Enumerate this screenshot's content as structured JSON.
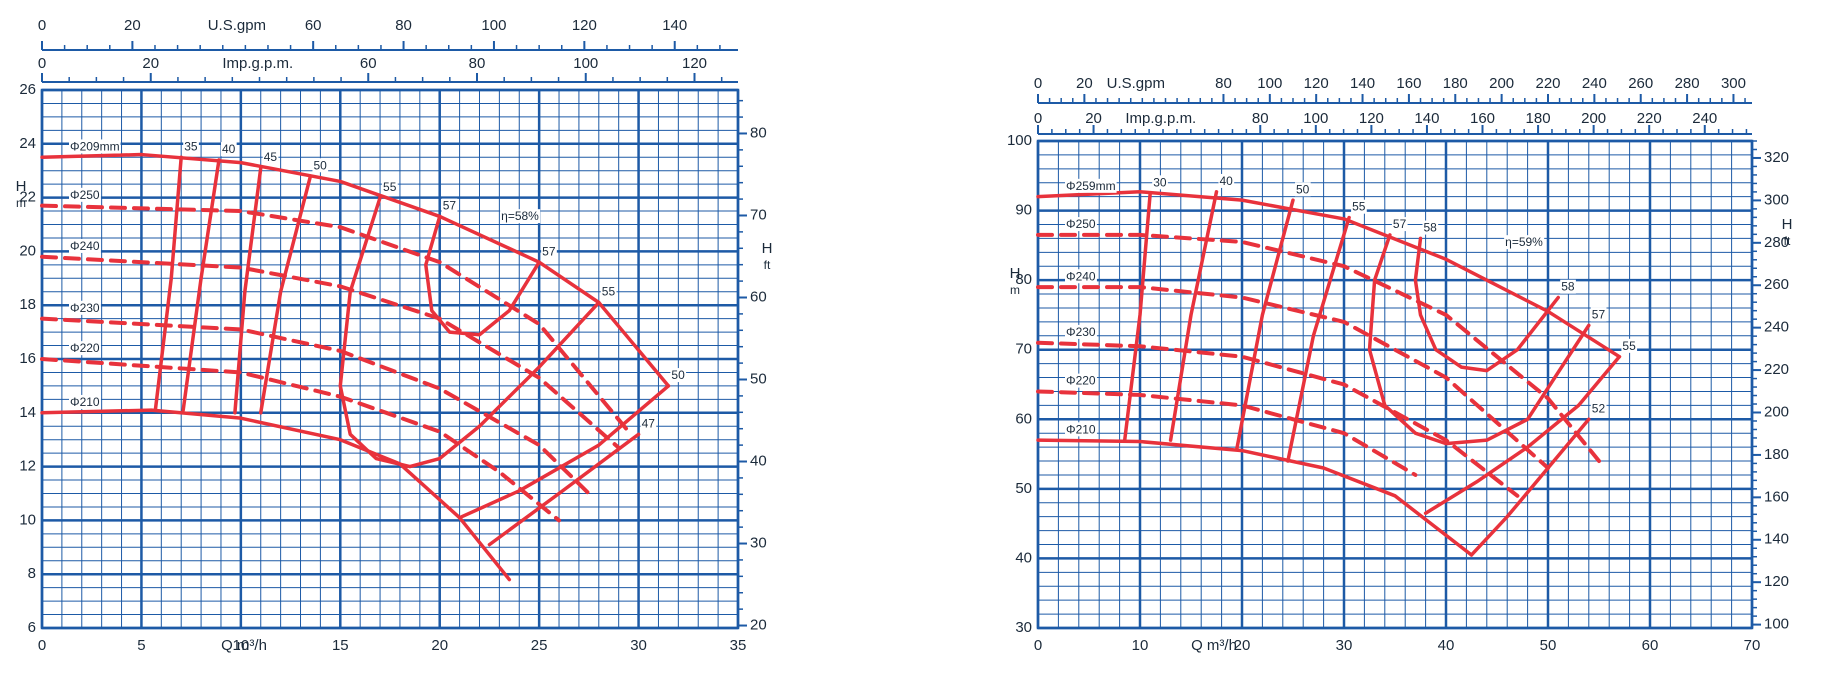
{
  "chart_data": [
    {
      "type": "line",
      "x_label": "Q m³/h",
      "y_label": "H",
      "y_unit": "m",
      "y2_label": "H",
      "y2_unit": "ft",
      "xlim": [
        0,
        35
      ],
      "xticks": [
        0,
        5,
        10,
        15,
        20,
        25,
        30,
        35
      ],
      "ylim": [
        6,
        26
      ],
      "yticks": [
        6,
        8,
        10,
        12,
        14,
        16,
        18,
        20,
        22,
        24,
        26
      ],
      "y2lim": [
        19.7,
        85.3
      ],
      "y2ticks": [
        20,
        30,
        40,
        50,
        60,
        70,
        80
      ],
      "top_axes": [
        {
          "label": "U.S.gpm",
          "lim": [
            0,
            154
          ],
          "ticks": [
            0,
            20,
            60,
            80,
            100,
            120,
            140
          ]
        },
        {
          "label": "Imp.g.p.m.",
          "lim": [
            0,
            128
          ],
          "ticks": [
            0,
            20,
            60,
            80,
            100,
            120
          ]
        }
      ],
      "grid": true,
      "grid_color": "#1d5aa6",
      "impeller_curves": [
        {
          "name": "Φ209mm",
          "color": "#e8323c",
          "style": "solid",
          "x": [
            0,
            5,
            10,
            15,
            20,
            25,
            28,
            31.5
          ],
          "values": [
            23.5,
            23.6,
            23.3,
            22.6,
            21.3,
            19.6,
            18.1,
            15
          ]
        },
        {
          "name": "Φ250",
          "color": "#e8323c",
          "style": "dashed",
          "x": [
            0,
            10,
            15,
            20,
            25,
            29.5
          ],
          "values": [
            21.7,
            21.5,
            20.9,
            19.6,
            17.3,
            13.3
          ]
        },
        {
          "name": "Φ240",
          "color": "#e8323c",
          "style": "dashed",
          "x": [
            0,
            10,
            15,
            20,
            25,
            29
          ],
          "values": [
            19.8,
            19.4,
            18.7,
            17.5,
            15.3,
            12.7
          ]
        },
        {
          "name": "Φ230",
          "color": "#e8323c",
          "style": "dashed",
          "x": [
            0,
            10,
            15,
            20,
            25,
            27.5
          ],
          "values": [
            17.5,
            17.1,
            16.3,
            14.9,
            12.8,
            11
          ]
        },
        {
          "name": "Φ220",
          "color": "#e8323c",
          "style": "dashed",
          "x": [
            0,
            10,
            15,
            20,
            23,
            26
          ],
          "values": [
            16,
            15.5,
            14.6,
            13.3,
            11.8,
            10
          ]
        },
        {
          "name": "Φ210",
          "color": "#e8323c",
          "style": "solid",
          "x": [
            0,
            5.5,
            10,
            15,
            18,
            21,
            23.5
          ],
          "values": [
            14,
            14.1,
            13.8,
            13,
            12.1,
            10.1,
            7.8
          ]
        }
      ],
      "efficiency_curves": [
        {
          "name": "35",
          "color": "#e8323c",
          "style": "solid",
          "x": [
            7,
            6.5,
            5.7
          ],
          "values": [
            23.5,
            19,
            14.1
          ]
        },
        {
          "name": "40",
          "color": "#e8323c",
          "style": "solid",
          "x": [
            8.9,
            8,
            7.1
          ],
          "values": [
            23.4,
            19,
            14.1
          ]
        },
        {
          "name": "45",
          "color": "#e8323c",
          "style": "solid",
          "x": [
            11,
            10.2,
            9.7
          ],
          "values": [
            23.1,
            18.5,
            14
          ]
        },
        {
          "name": "50",
          "color": "#e8323c",
          "style": "solid",
          "x": [
            13.5,
            12,
            11
          ],
          "values": [
            22.8,
            18.5,
            14
          ]
        },
        {
          "name": "55",
          "color": "#e8323c",
          "style": "solid",
          "x": [
            17,
            15.5,
            15,
            15.5,
            16.8,
            18.5,
            20,
            22,
            25,
            28
          ],
          "values": [
            22,
            18.5,
            15,
            13.2,
            12.3,
            12,
            12.3,
            13.5,
            15.7,
            18.1
          ]
        },
        {
          "name": "57",
          "color": "#e8323c",
          "style": "solid",
          "x": [
            20,
            19.3,
            19.6,
            20.5,
            22,
            23.5,
            25
          ],
          "values": [
            21.3,
            19.5,
            17.8,
            17,
            16.9,
            17.8,
            19.6
          ]
        },
        {
          "name": "50",
          "color": "#e8323c",
          "style": "solid",
          "x": [
            31.5,
            28,
            24,
            21
          ],
          "values": [
            15,
            12.8,
            11.1,
            10.1
          ]
        },
        {
          "name": "47",
          "color": "#e8323c",
          "style": "solid",
          "x": [
            30,
            26,
            22.5
          ],
          "values": [
            13.2,
            11,
            9.1
          ]
        }
      ],
      "annotations": [
        "η=58%"
      ]
    },
    {
      "type": "line",
      "x_label": "Q m³/h",
      "y_label": "H",
      "y_unit": "m",
      "y2_label": "H",
      "y2_unit": "ft",
      "xlim": [
        0,
        70
      ],
      "xticks": [
        0,
        10,
        20,
        30,
        40,
        50,
        60,
        70
      ],
      "ylim": [
        30,
        100
      ],
      "yticks": [
        30,
        40,
        50,
        60,
        70,
        80,
        90,
        100
      ],
      "y2lim": [
        98.4,
        328
      ],
      "y2ticks": [
        100,
        120,
        140,
        160,
        180,
        200,
        220,
        240,
        260,
        280,
        300,
        320
      ],
      "top_axes": [
        {
          "label": "U.S.gpm",
          "lim": [
            0,
            308
          ],
          "ticks": [
            0,
            20,
            80,
            100,
            120,
            140,
            160,
            180,
            200,
            220,
            240,
            260,
            280,
            300
          ]
        },
        {
          "label": "Imp.g.p.m.",
          "lim": [
            0,
            257
          ],
          "ticks": [
            0,
            20,
            80,
            100,
            120,
            140,
            160,
            180,
            200,
            220,
            240
          ]
        }
      ],
      "grid": true,
      "grid_color": "#1d5aa6",
      "impeller_curves": [
        {
          "name": "Φ259mm",
          "color": "#e8323c",
          "style": "solid",
          "x": [
            0,
            10,
            20,
            30,
            40,
            50,
            57
          ],
          "values": [
            92,
            92.7,
            91.5,
            88.8,
            83,
            75.5,
            69
          ]
        },
        {
          "name": "Φ250",
          "color": "#e8323c",
          "style": "dashed",
          "x": [
            0,
            10,
            20,
            30,
            40,
            50,
            55
          ],
          "values": [
            86.5,
            86.5,
            85.5,
            82,
            75,
            63,
            54
          ]
        },
        {
          "name": "Φ240",
          "color": "#e8323c",
          "style": "dashed",
          "x": [
            0,
            10,
            20,
            30,
            40,
            50
          ],
          "values": [
            79,
            79,
            77.5,
            74,
            66,
            53
          ]
        },
        {
          "name": "Φ230",
          "color": "#e8323c",
          "style": "dashed",
          "x": [
            0,
            10,
            20,
            30,
            40,
            47
          ],
          "values": [
            71,
            70.5,
            69,
            65,
            57,
            49
          ]
        },
        {
          "name": "Φ220",
          "color": "#e8323c",
          "style": "dashed",
          "x": [
            0,
            10,
            20,
            30,
            37
          ],
          "values": [
            64,
            63.5,
            62,
            58,
            52
          ]
        },
        {
          "name": "Φ210",
          "color": "#e8323c",
          "style": "solid",
          "x": [
            0,
            10,
            20,
            28,
            35,
            42.5
          ],
          "values": [
            57,
            56.8,
            55.5,
            53,
            49,
            40.5
          ]
        }
      ],
      "efficiency_curves": [
        {
          "name": "30",
          "color": "#e8323c",
          "style": "solid",
          "x": [
            11,
            10,
            8.5
          ],
          "values": [
            92.5,
            75,
            57
          ]
        },
        {
          "name": "40",
          "color": "#e8323c",
          "style": "solid",
          "x": [
            17.5,
            15,
            13
          ],
          "values": [
            92.7,
            75,
            57
          ]
        },
        {
          "name": "50",
          "color": "#e8323c",
          "style": "solid",
          "x": [
            25,
            22,
            19.5
          ],
          "values": [
            91.5,
            75,
            55.8
          ]
        },
        {
          "name": "55",
          "color": "#e8323c",
          "style": "solid",
          "x": [
            30.5,
            27,
            24.5
          ],
          "values": [
            89,
            72,
            54
          ]
        },
        {
          "name": "57",
          "color": "#e8323c",
          "style": "solid",
          "x": [
            34.5,
            33,
            32.5,
            34,
            37,
            40,
            44,
            48,
            54
          ],
          "values": [
            86.5,
            80,
            70,
            62,
            58,
            56.5,
            57,
            60,
            73.5
          ]
        },
        {
          "name": "58",
          "color": "#e8323c",
          "style": "solid",
          "x": [
            37.5,
            37,
            37.5,
            39,
            41.5,
            44,
            47,
            51
          ],
          "values": [
            86,
            80,
            75,
            70,
            67.5,
            67,
            70,
            77.5
          ]
        },
        {
          "name": "55",
          "color": "#e8323c",
          "style": "solid",
          "x": [
            57,
            53,
            48,
            43,
            38
          ],
          "values": [
            69,
            62,
            56,
            51,
            46.5
          ]
        },
        {
          "name": "52",
          "color": "#e8323c",
          "style": "solid",
          "x": [
            54,
            50,
            46,
            42.5
          ],
          "values": [
            60,
            53,
            46,
            40.5
          ]
        }
      ],
      "annotations": [
        "η=59%"
      ]
    }
  ]
}
